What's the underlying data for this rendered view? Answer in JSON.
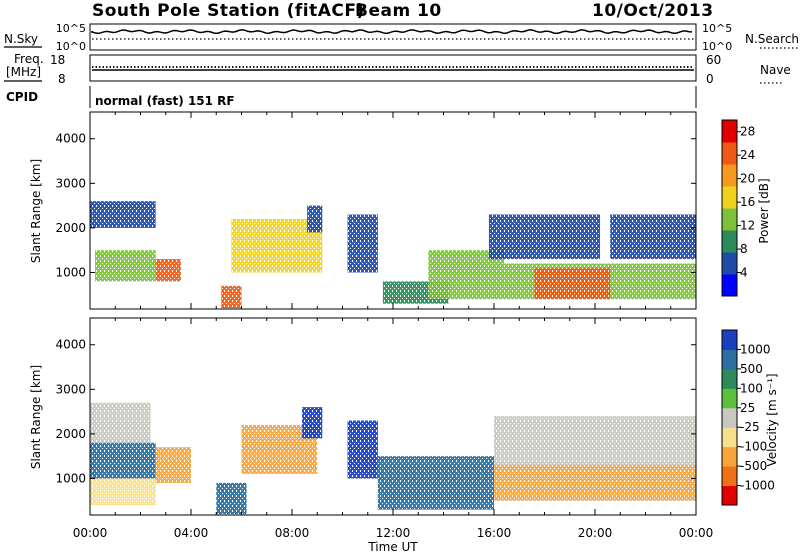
{
  "header": {
    "station": "South Pole Station (fitACF)",
    "beam": "Beam 10",
    "date": "10/Oct/2013"
  },
  "top_panels": {
    "nsky_label": "N.Sky",
    "nsearch_label": "N.Search",
    "nsky_ticks": [
      "10^5",
      "10^0"
    ],
    "nsearch_ticks": [
      "10^5",
      "10^0"
    ],
    "freq_label_line1": "Freq.",
    "freq_label_line2": "[MHz]",
    "freq_ticks": [
      "18",
      "8"
    ],
    "nave_label": "Nave",
    "nave_ticks": [
      "60",
      "0"
    ],
    "cpid_label": "CPID",
    "cpid_text": "normal (fast) 151 RF"
  },
  "chart_data": [
    {
      "type": "heatmap",
      "title": "",
      "xlabel": "Time UT",
      "ylabel": "Slant Range [km]",
      "x_ticks": [
        "00:00",
        "04:00",
        "08:00",
        "12:00",
        "16:00",
        "20:00",
        "00:00"
      ],
      "xlim_hours": [
        0,
        24
      ],
      "ylim": [
        180,
        4600
      ],
      "y_ticks": [
        1000,
        2000,
        3000,
        4000
      ],
      "colorbar": {
        "label": "Power [dB]",
        "ticks": [
          "4",
          "8",
          "12",
          "16",
          "20",
          "24",
          "28"
        ],
        "range": [
          0,
          30
        ],
        "colors": [
          "#0000ff",
          "#1f4ba8",
          "#2d8a5a",
          "#7dc23a",
          "#f0d21e",
          "#f59a1e",
          "#f05a14",
          "#e00000"
        ]
      },
      "regions": [
        {
          "start_hour": 0.0,
          "end_hour": 2.6,
          "range_min": 2000,
          "range_max": 2600,
          "value_db": 6
        },
        {
          "start_hour": 0.2,
          "end_hour": 2.6,
          "range_min": 800,
          "range_max": 1500,
          "value_db": 14
        },
        {
          "start_hour": 2.6,
          "end_hour": 3.6,
          "range_min": 800,
          "range_max": 1300,
          "value_db": 26
        },
        {
          "start_hour": 5.2,
          "end_hour": 6.0,
          "range_min": 200,
          "range_max": 700,
          "value_db": 24
        },
        {
          "start_hour": 5.6,
          "end_hour": 9.2,
          "range_min": 1000,
          "range_max": 2200,
          "value_db": 16
        },
        {
          "start_hour": 8.6,
          "end_hour": 9.2,
          "range_min": 1900,
          "range_max": 2500,
          "value_db": 6
        },
        {
          "start_hour": 10.2,
          "end_hour": 11.4,
          "range_min": 1000,
          "range_max": 2300,
          "value_db": 6
        },
        {
          "start_hour": 11.6,
          "end_hour": 14.2,
          "range_min": 300,
          "range_max": 800,
          "value_db": 8
        },
        {
          "start_hour": 13.4,
          "end_hour": 16.4,
          "range_min": 400,
          "range_max": 1500,
          "value_db": 12
        },
        {
          "start_hour": 15.8,
          "end_hour": 20.2,
          "range_min": 1300,
          "range_max": 2300,
          "value_db": 6
        },
        {
          "start_hour": 16.4,
          "end_hour": 24.0,
          "range_min": 400,
          "range_max": 1200,
          "value_db": 14
        },
        {
          "start_hour": 17.6,
          "end_hour": 20.6,
          "range_min": 400,
          "range_max": 1100,
          "value_db": 26
        },
        {
          "start_hour": 20.6,
          "end_hour": 24.0,
          "range_min": 1300,
          "range_max": 2300,
          "value_db": 6
        }
      ]
    },
    {
      "type": "heatmap",
      "title": "",
      "xlabel": "Time UT",
      "ylabel": "Slant Range [km]",
      "x_ticks": [
        "00:00",
        "04:00",
        "08:00",
        "12:00",
        "16:00",
        "20:00",
        "00:00"
      ],
      "xlim_hours": [
        0,
        24
      ],
      "ylim": [
        180,
        4600
      ],
      "y_ticks": [
        1000,
        2000,
        3000,
        4000
      ],
      "colorbar": {
        "label": "Velocity [m s⁻¹]",
        "ticks": [
          "1000",
          "500",
          "100",
          "25",
          "-25",
          "-100",
          "-500",
          "-1000"
        ],
        "colors": [
          "#1a3fbf",
          "#2a6fa0",
          "#2d8a5a",
          "#5cc03a",
          "#c8c8c0",
          "#f7e08c",
          "#f7a43a",
          "#f07018",
          "#e00000"
        ]
      },
      "regions": [
        {
          "start_hour": 0.0,
          "end_hour": 2.4,
          "range_min": 1800,
          "range_max": 2700,
          "value": 20
        },
        {
          "start_hour": 0.0,
          "end_hour": 2.6,
          "range_min": 1000,
          "range_max": 1800,
          "value": 300
        },
        {
          "start_hour": 0.0,
          "end_hour": 2.6,
          "range_min": 400,
          "range_max": 1000,
          "value": -60
        },
        {
          "start_hour": 2.6,
          "end_hour": 4.0,
          "range_min": 900,
          "range_max": 1700,
          "value": -400
        },
        {
          "start_hour": 5.0,
          "end_hour": 6.2,
          "range_min": 200,
          "range_max": 900,
          "value": 150
        },
        {
          "start_hour": 6.0,
          "end_hour": 9.0,
          "range_min": 1100,
          "range_max": 2200,
          "value": -450
        },
        {
          "start_hour": 8.4,
          "end_hour": 9.2,
          "range_min": 1900,
          "range_max": 2600,
          "value": 600
        },
        {
          "start_hour": 10.2,
          "end_hour": 11.4,
          "range_min": 1000,
          "range_max": 2300,
          "value": 700
        },
        {
          "start_hour": 11.4,
          "end_hour": 16.0,
          "range_min": 300,
          "range_max": 1500,
          "value": 200
        },
        {
          "start_hour": 16.0,
          "end_hour": 24.0,
          "range_min": 500,
          "range_max": 1300,
          "value": -450
        },
        {
          "start_hour": 16.0,
          "end_hour": 24.0,
          "range_min": 1300,
          "range_max": 2400,
          "value": 10
        }
      ]
    }
  ]
}
